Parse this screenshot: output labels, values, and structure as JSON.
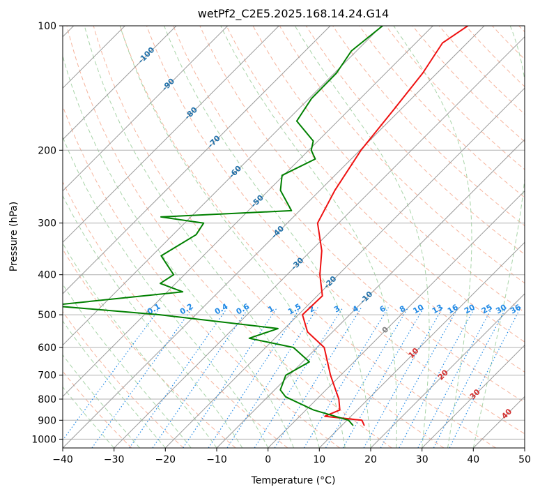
{
  "chart_data": {
    "type": "line",
    "title": "wetPf2_C2E5.2025.168.14.24.G14",
    "xlabel": "Temperature (°C)",
    "ylabel": "Pressure (hPa)",
    "xlim": [
      -40,
      50
    ],
    "ylim": [
      1050,
      100
    ],
    "y_scale": "log",
    "skew": 45,
    "x_ticks": [
      -40,
      -30,
      -20,
      -10,
      0,
      10,
      20,
      30,
      40,
      50
    ],
    "x_tick_labels": [
      "−40",
      "−30",
      "−20",
      "−10",
      "0",
      "10",
      "20",
      "30",
      "40",
      "50"
    ],
    "y_ticks": [
      100,
      200,
      300,
      400,
      500,
      600,
      700,
      800,
      900,
      1000
    ],
    "y_tick_labels": [
      "100",
      "200",
      "300",
      "400",
      "500",
      "600",
      "700",
      "800",
      "900",
      "1000"
    ],
    "grid": true,
    "colors": {
      "temperature": "#ee1111",
      "dewpoint": "#008000",
      "isotherm": "#9a9a9a",
      "isobar": "#b0b0b0",
      "dry_adiabat": "#f4a78c",
      "moist_adiabat": "#9fcf9f",
      "mixing_ratio": "#1e88e5",
      "isotherm_label": "#1f6fa8",
      "dry_label": "#d32f2f",
      "zero_label": "#808080"
    },
    "isotherm_labels": [
      "-100",
      "-90",
      "-80",
      "-70",
      "-60",
      "-50",
      "-40",
      "-30",
      "-20",
      "-10",
      "0",
      "10",
      "20",
      "30",
      "40"
    ],
    "mixing_ratio_labels": [
      "0.1",
      "0.2",
      "0.4",
      "0.6",
      "1",
      "1.5",
      "2",
      "3",
      "4",
      "6",
      "8",
      "10",
      "13",
      "16",
      "20",
      "25",
      "30",
      "36"
    ],
    "series": [
      {
        "name": "Temperature",
        "points": [
          [
            -43.2,
            100
          ],
          [
            -44.8,
            110
          ],
          [
            -42.8,
            130
          ],
          [
            -41.3,
            160
          ],
          [
            -39.8,
            200
          ],
          [
            -37.1,
            250
          ],
          [
            -34.1,
            300
          ],
          [
            -27.9,
            350
          ],
          [
            -23.6,
            400
          ],
          [
            -19.0,
            450
          ],
          [
            -19.2,
            500
          ],
          [
            -14.9,
            550
          ],
          [
            -8.6,
            600
          ],
          [
            -2.0,
            700
          ],
          [
            4.3,
            800
          ],
          [
            6.6,
            850
          ],
          [
            4.9,
            880
          ],
          [
            12.9,
            900
          ],
          [
            14.3,
            925
          ]
        ]
      },
      {
        "name": "Dewpoint",
        "points": [
          [
            -59.8,
            100
          ],
          [
            -61.0,
            115
          ],
          [
            -59.6,
            130
          ],
          [
            -59.5,
            150
          ],
          [
            -58.0,
            170
          ],
          [
            -50.9,
            190
          ],
          [
            -49.5,
            200
          ],
          [
            -47.0,
            210
          ],
          [
            -50.3,
            230
          ],
          [
            -47.7,
            250
          ],
          [
            -41.6,
            280
          ],
          [
            -65.8,
            290
          ],
          [
            -56.3,
            300
          ],
          [
            -55.5,
            320
          ],
          [
            -58.2,
            360
          ],
          [
            -52.1,
            400
          ],
          [
            -53.0,
            420
          ],
          [
            -47.0,
            440
          ],
          [
            -70.2,
            475
          ],
          [
            -47.0,
            500
          ],
          [
            -21.3,
            540
          ],
          [
            -25.0,
            570
          ],
          [
            -14.6,
            600
          ],
          [
            -8.7,
            650
          ],
          [
            -10.7,
            700
          ],
          [
            -8.9,
            760
          ],
          [
            -6.5,
            790
          ],
          [
            1.5,
            850
          ],
          [
            10.3,
            900
          ],
          [
            12.1,
            925
          ]
        ]
      }
    ]
  }
}
